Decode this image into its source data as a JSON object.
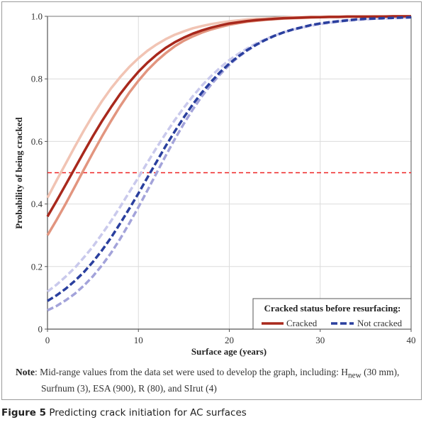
{
  "figure": {
    "caption_label": "Figure 5",
    "caption_text": " Predicting crack initiation for AC surfaces",
    "note_label": "Note",
    "note_line1_pre": ": Mid-range values from the data set were used to develop the graph, including: H",
    "note_sub": "new",
    "note_line1_post": " (30 mm),",
    "note_line2": "Surfnum (3), ESA (900), R (80), and SIrut (4)"
  },
  "chart_data": {
    "type": "line",
    "title": "",
    "xlabel": "Surface age (years)",
    "ylabel": "Probability of being cracked",
    "xlim": [
      0,
      40
    ],
    "ylim": [
      0,
      1.0
    ],
    "xticks": [
      0,
      10,
      20,
      30,
      40
    ],
    "yticks": [
      0,
      0.2,
      0.4,
      0.6,
      0.8,
      1.0
    ],
    "ytick_labels": [
      "0",
      "0.2",
      "0.4",
      "0.6",
      "0.8",
      "1.0"
    ],
    "grid": true,
    "reference_line": {
      "y": 0.5,
      "color": "#ee2222",
      "style": "dashed"
    },
    "legend": {
      "title": "Cracked status before resurfacing:",
      "placement": "bottom-right",
      "entries": [
        {
          "label": "Cracked",
          "color": "#a8281c",
          "style": "solid"
        },
        {
          "label": "Not cracked",
          "color": "#2a3f9e",
          "style": "dashed"
        }
      ]
    },
    "x": [
      0,
      1,
      2,
      3,
      4,
      5,
      6,
      7,
      8,
      9,
      10,
      11,
      12,
      13,
      14,
      15,
      16,
      17,
      18,
      19,
      20,
      21,
      22,
      23,
      24,
      25,
      26,
      27,
      28,
      29,
      30,
      31,
      32,
      33,
      34,
      35,
      36,
      37,
      38,
      39,
      40
    ],
    "series": [
      {
        "name": "Cracked (upper bound)",
        "group": "Cracked",
        "color": "#f1c4b4",
        "style": "solid",
        "values": [
          0.42,
          0.475,
          0.529,
          0.583,
          0.635,
          0.684,
          0.729,
          0.77,
          0.806,
          0.838,
          0.866,
          0.89,
          0.91,
          0.927,
          0.941,
          0.952,
          0.962,
          0.969,
          0.975,
          0.98,
          0.984,
          0.987,
          0.99,
          0.992,
          0.993,
          0.995,
          0.996,
          0.997,
          0.997,
          0.998,
          0.998,
          0.999,
          0.999,
          0.999,
          0.999,
          0.999,
          1.0,
          1.0,
          1.0,
          1.0,
          1.0
        ]
      },
      {
        "name": "Cracked",
        "group": "Cracked",
        "color": "#a8281c",
        "style": "solid",
        "values": [
          0.36,
          0.41,
          0.462,
          0.514,
          0.566,
          0.617,
          0.665,
          0.71,
          0.752,
          0.789,
          0.823,
          0.852,
          0.877,
          0.899,
          0.917,
          0.932,
          0.945,
          0.955,
          0.964,
          0.971,
          0.977,
          0.981,
          0.985,
          0.988,
          0.99,
          0.992,
          0.994,
          0.995,
          0.996,
          0.997,
          0.997,
          0.998,
          0.998,
          0.999,
          0.999,
          0.999,
          0.999,
          0.999,
          1.0,
          1.0,
          1.0
        ]
      },
      {
        "name": "Cracked (lower bound)",
        "group": "Cracked",
        "color": "#e2957f",
        "style": "solid",
        "values": [
          0.3,
          0.349,
          0.401,
          0.455,
          0.51,
          0.564,
          0.616,
          0.666,
          0.713,
          0.756,
          0.794,
          0.828,
          0.857,
          0.882,
          0.904,
          0.922,
          0.936,
          0.948,
          0.958,
          0.966,
          0.973,
          0.978,
          0.983,
          0.986,
          0.989,
          0.991,
          0.993,
          0.994,
          0.995,
          0.996,
          0.997,
          0.998,
          0.998,
          0.999,
          0.999,
          0.999,
          0.999,
          0.999,
          1.0,
          1.0,
          1.0
        ]
      },
      {
        "name": "Not cracked (upper bound)",
        "group": "Not cracked",
        "color": "#c9c9ec",
        "style": "dashed",
        "values": [
          0.12,
          0.142,
          0.168,
          0.196,
          0.229,
          0.264,
          0.304,
          0.346,
          0.391,
          0.438,
          0.485,
          0.533,
          0.58,
          0.625,
          0.668,
          0.708,
          0.745,
          0.779,
          0.809,
          0.836,
          0.86,
          0.88,
          0.898,
          0.914,
          0.927,
          0.939,
          0.949,
          0.957,
          0.964,
          0.97,
          0.975,
          0.979,
          0.983,
          0.986,
          0.988,
          0.99,
          0.992,
          0.993,
          0.994,
          0.995,
          0.996
        ]
      },
      {
        "name": "Not cracked",
        "group": "Not cracked",
        "color": "#2a3f9e",
        "style": "dashed",
        "values": [
          0.09,
          0.108,
          0.129,
          0.154,
          0.182,
          0.215,
          0.252,
          0.293,
          0.338,
          0.385,
          0.434,
          0.485,
          0.535,
          0.585,
          0.632,
          0.677,
          0.719,
          0.757,
          0.791,
          0.822,
          0.849,
          0.872,
          0.893,
          0.91,
          0.925,
          0.938,
          0.949,
          0.958,
          0.965,
          0.972,
          0.977,
          0.981,
          0.984,
          0.987,
          0.99,
          0.992,
          0.993,
          0.994,
          0.995,
          0.996,
          0.997
        ]
      },
      {
        "name": "Not cracked (lower bound)",
        "group": "Not cracked",
        "color": "#a3a3da",
        "style": "dashed",
        "values": [
          0.06,
          0.074,
          0.092,
          0.113,
          0.139,
          0.169,
          0.204,
          0.244,
          0.289,
          0.338,
          0.39,
          0.444,
          0.499,
          0.554,
          0.607,
          0.657,
          0.703,
          0.745,
          0.782,
          0.815,
          0.845,
          0.87,
          0.891,
          0.909,
          0.925,
          0.938,
          0.949,
          0.958,
          0.965,
          0.972,
          0.977,
          0.981,
          0.985,
          0.988,
          0.99,
          0.992,
          0.993,
          0.995,
          0.996,
          0.996,
          0.997
        ]
      }
    ]
  }
}
